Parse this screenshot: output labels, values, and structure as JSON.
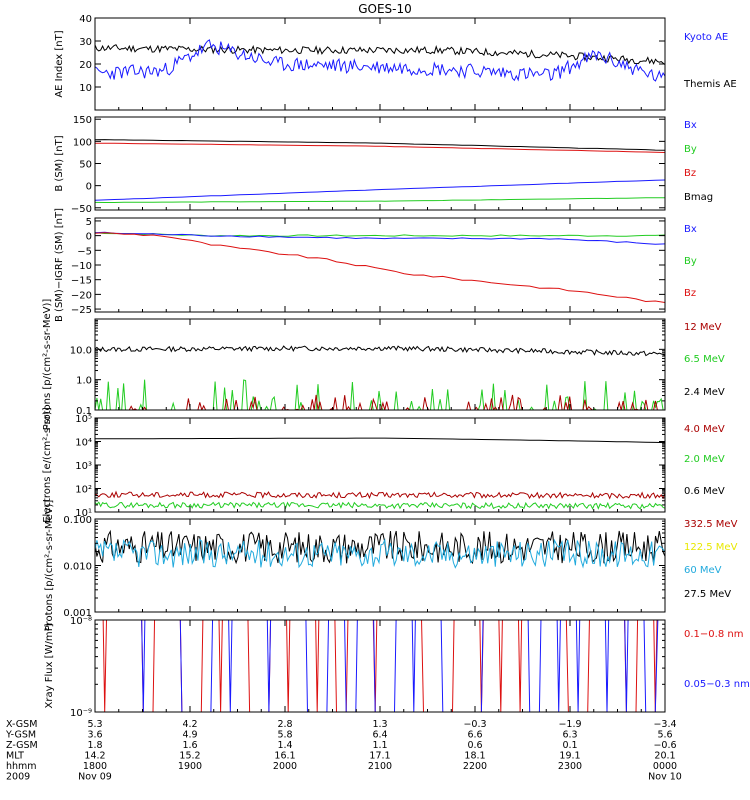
{
  "title": "GOES-10",
  "colors": {
    "black": "#000000",
    "blue": "#1a1aff",
    "green": "#22cc22",
    "red": "#dd1111",
    "darkred": "#aa0000",
    "yellow": "#e8e800",
    "cyan": "#22aadd"
  },
  "chart_data": [
    {
      "id": "ae",
      "type": "line",
      "ylabel": "AE Index [nT]",
      "yscale": "linear",
      "ylim": [
        0,
        40
      ],
      "yticks": [
        {
          "v": 10,
          "l": "10"
        },
        {
          "v": 20,
          "l": "20"
        },
        {
          "v": 30,
          "l": "30"
        },
        {
          "v": 40,
          "l": "40"
        }
      ],
      "legend": [
        {
          "name": "Kyoto AE",
          "color": "#1a1aff"
        },
        {
          "name": "Themis AE",
          "color": "#000000"
        }
      ],
      "series": [
        {
          "name": "Themis AE",
          "color": "#000000",
          "kind": "noise",
          "base": [
            [
              0,
              27
            ],
            [
              0.3,
              26
            ],
            [
              0.6,
              26
            ],
            [
              0.8,
              24
            ],
            [
              1,
              21
            ]
          ],
          "amp": 1.6,
          "seed": 11
        },
        {
          "name": "Kyoto AE",
          "color": "#1a1aff",
          "kind": "noise",
          "base": [
            [
              0,
              16
            ],
            [
              0.12,
              17
            ],
            [
              0.2,
              28
            ],
            [
              0.32,
              20
            ],
            [
              0.6,
              18
            ],
            [
              0.8,
              15
            ],
            [
              0.88,
              24
            ],
            [
              1,
              13
            ]
          ],
          "amp": 3.2,
          "seed": 23
        }
      ]
    },
    {
      "id": "bsm",
      "type": "line",
      "ylabel": "B (SM) [nT]",
      "yscale": "linear",
      "ylim": [
        -55,
        155
      ],
      "yticks": [
        {
          "v": -50,
          "l": "−50"
        },
        {
          "v": 0,
          "l": "0"
        },
        {
          "v": 50,
          "l": "50"
        },
        {
          "v": 100,
          "l": "100"
        },
        {
          "v": 150,
          "l": "150"
        }
      ],
      "legend": [
        {
          "name": "Bx",
          "color": "#1a1aff"
        },
        {
          "name": "By",
          "color": "#22cc22"
        },
        {
          "name": "Bz",
          "color": "#dd1111"
        },
        {
          "name": "Bmag",
          "color": "#000000"
        }
      ],
      "series": [
        {
          "name": "Bmag",
          "color": "#000000",
          "kind": "smooth",
          "base": [
            [
              0,
              104
            ],
            [
              0.5,
              96
            ],
            [
              1,
              80
            ]
          ],
          "amp": 0.3,
          "seed": 3
        },
        {
          "name": "Bz",
          "color": "#dd1111",
          "kind": "smooth",
          "base": [
            [
              0,
              96
            ],
            [
              0.5,
              89
            ],
            [
              1,
              75
            ]
          ],
          "amp": 0.3,
          "seed": 4
        },
        {
          "name": "Bx",
          "color": "#1a1aff",
          "kind": "smooth",
          "base": [
            [
              0,
              -33
            ],
            [
              0.5,
              -9
            ],
            [
              1,
              13
            ]
          ],
          "amp": 0.3,
          "seed": 5
        },
        {
          "name": "By",
          "color": "#22cc22",
          "kind": "smooth",
          "base": [
            [
              0,
              -38
            ],
            [
              0.5,
              -35
            ],
            [
              1,
              -27
            ]
          ],
          "amp": 0.3,
          "seed": 6
        }
      ]
    },
    {
      "id": "bigrf",
      "type": "line",
      "ylabel": "B (SM)−IGRF (SM) [nT]",
      "yscale": "linear",
      "ylim": [
        -26,
        6
      ],
      "yticks": [
        {
          "v": -25,
          "l": "−25"
        },
        {
          "v": -20,
          "l": "−20"
        },
        {
          "v": -15,
          "l": "−15"
        },
        {
          "v": -10,
          "l": "−10"
        },
        {
          "v": -5,
          "l": "−5"
        },
        {
          "v": 0,
          "l": "0"
        },
        {
          "v": 5,
          "l": "5"
        }
      ],
      "legend": [
        {
          "name": "Bx",
          "color": "#1a1aff"
        },
        {
          "name": "By",
          "color": "#22cc22"
        },
        {
          "name": "Bz",
          "color": "#dd1111"
        }
      ],
      "series": [
        {
          "name": "By",
          "color": "#22cc22",
          "kind": "smooth",
          "base": [
            [
              0,
              1
            ],
            [
              0.2,
              0
            ],
            [
              0.5,
              0
            ],
            [
              1,
              0
            ]
          ],
          "amp": 0.25,
          "seed": 7
        },
        {
          "name": "Bx",
          "color": "#1a1aff",
          "kind": "smooth",
          "base": [
            [
              0,
              1
            ],
            [
              0.2,
              0
            ],
            [
              0.5,
              -1
            ],
            [
              0.8,
              -1
            ],
            [
              1,
              -3
            ]
          ],
          "amp": 0.25,
          "seed": 8
        },
        {
          "name": "Bz",
          "color": "#dd1111",
          "kind": "smooth",
          "base": [
            [
              0,
              1
            ],
            [
              0.12,
              0
            ],
            [
              0.2,
              -3
            ],
            [
              0.4,
              -8
            ],
            [
              0.55,
              -13
            ],
            [
              0.7,
              -16
            ],
            [
              0.85,
              -19
            ],
            [
              1,
              -23
            ]
          ],
          "amp": 0.35,
          "seed": 9
        }
      ]
    },
    {
      "id": "prot1",
      "type": "line",
      "ylabel": "Protons [p/(cm²-s-sr-MeV)]",
      "yscale": "log",
      "ylim": [
        0.1,
        100
      ],
      "yticks": [
        {
          "v": 0.1,
          "l": "0.1"
        },
        {
          "v": 1,
          "l": "1.0"
        },
        {
          "v": 10,
          "l": "10.0"
        }
      ],
      "legend": [
        {
          "name": "12 MeV",
          "color": "#aa0000"
        },
        {
          "name": "6.5 MeV",
          "color": "#22cc22"
        },
        {
          "name": "2.4 MeV",
          "color": "#000000"
        }
      ],
      "series": [
        {
          "name": "2.4 MeV",
          "color": "#000000",
          "kind": "lognoise",
          "base": [
            [
              0,
              10
            ],
            [
              0.5,
              11
            ],
            [
              1,
              7
            ]
          ],
          "amp": 0.08,
          "seed": 13
        },
        {
          "name": "6.5 MeV",
          "color": "#22cc22",
          "kind": "spikes",
          "base": [
            [
              0,
              0.1
            ],
            [
              1,
              0.1
            ]
          ],
          "amp": 0.5,
          "seed": 17
        },
        {
          "name": "12 MeV",
          "color": "#aa0000",
          "kind": "spikes",
          "base": [
            [
              0,
              0.1
            ],
            [
              1,
              0.1
            ]
          ],
          "amp": 0.25,
          "seed": 19
        }
      ]
    },
    {
      "id": "elec",
      "type": "line",
      "ylabel": "Electrons [e/(cm²-s-sr)]",
      "yscale": "log",
      "ylim": [
        10,
        100000
      ],
      "yticks": [
        {
          "v": 10,
          "l": "10¹"
        },
        {
          "v": 100,
          "l": "10²"
        },
        {
          "v": 1000,
          "l": "10³"
        },
        {
          "v": 10000,
          "l": "10⁴"
        },
        {
          "v": 100000,
          "l": "10⁵"
        }
      ],
      "legend": [
        {
          "name": "4.0 MeV",
          "color": "#aa0000"
        },
        {
          "name": "2.0 MeV",
          "color": "#22cc22"
        },
        {
          "name": "0.6 MeV",
          "color": "#000000"
        }
      ],
      "series": [
        {
          "name": "0.6 MeV",
          "color": "#000000",
          "kind": "smooth",
          "base": [
            [
              0,
              13000
            ],
            [
              0.5,
              14000
            ],
            [
              1,
              9000
            ]
          ],
          "amp": 0.01,
          "seed": 21
        },
        {
          "name": "4.0 MeV",
          "color": "#aa0000",
          "kind": "lognoise",
          "base": [
            [
              0,
              55
            ],
            [
              1,
              50
            ]
          ],
          "amp": 0.12,
          "seed": 25
        },
        {
          "name": "2.0 MeV",
          "color": "#22cc22",
          "kind": "lognoise",
          "base": [
            [
              0,
              20
            ],
            [
              1,
              18
            ]
          ],
          "amp": 0.12,
          "seed": 29
        }
      ]
    },
    {
      "id": "prot2",
      "type": "line",
      "ylabel": "Protons [p/(cm²-s-sr-MeV)]",
      "yscale": "log",
      "ylim": [
        0.001,
        0.1
      ],
      "yticks": [
        {
          "v": 0.001,
          "l": "0.001"
        },
        {
          "v": 0.01,
          "l": "0.010"
        },
        {
          "v": 0.1,
          "l": "0.100"
        }
      ],
      "legend": [
        {
          "name": "332.5 MeV",
          "color": "#aa0000"
        },
        {
          "name": "122.5 MeV",
          "color": "#e8e800"
        },
        {
          "name": "60 MeV",
          "color": "#22aadd"
        },
        {
          "name": "27.5 MeV",
          "color": "#000000"
        }
      ],
      "series": [
        {
          "name": "27.5 MeV",
          "color": "#000000",
          "kind": "lognoise",
          "base": [
            [
              0,
              0.025
            ],
            [
              1,
              0.025
            ]
          ],
          "amp": 0.35,
          "seed": 31
        },
        {
          "name": "60 MeV",
          "color": "#22aadd",
          "kind": "lognoise",
          "base": [
            [
              0,
              0.018
            ],
            [
              1,
              0.018
            ]
          ],
          "amp": 0.3,
          "seed": 37
        }
      ]
    },
    {
      "id": "xray",
      "type": "line",
      "ylabel": "Xray Flux [W/m²]",
      "yscale": "log",
      "ylim": [
        1e-09,
        1e-08
      ],
      "yticks": [
        {
          "v": 1e-09,
          "l": "10⁻⁹"
        },
        {
          "v": 1e-08,
          "l": "10⁻⁸"
        }
      ],
      "legend": [
        {
          "name": "0.1−0.8 nm",
          "color": "#dd1111"
        },
        {
          "name": "0.05−0.3 nm",
          "color": "#1a1aff"
        }
      ],
      "series": [
        {
          "name": "0.1−0.8 nm",
          "color": "#dd1111",
          "kind": "smooth",
          "base": [
            [
              0,
              3.8e-09
            ],
            [
              1,
              3.8e-09
            ]
          ],
          "amp": 0.002,
          "seed": 41
        },
        {
          "name": "0.05−0.3 nm",
          "color": "#1a1aff",
          "kind": "smooth",
          "base": [
            [
              0,
              3.6e-09
            ],
            [
              1,
              3.6e-09
            ]
          ],
          "amp": 0.002,
          "seed": 43
        }
      ]
    }
  ],
  "x_axis": {
    "range": [
      "1800",
      "0000"
    ],
    "rows": [
      {
        "label": "X-GSM",
        "values": [
          "5.3",
          "4.2",
          "2.8",
          "1.3",
          "−0.3",
          "−1.9",
          "−3.4"
        ]
      },
      {
        "label": "Y-GSM",
        "values": [
          "3.6",
          "4.9",
          "5.8",
          "6.4",
          "6.6",
          "6.3",
          "5.6"
        ]
      },
      {
        "label": "Z-GSM",
        "values": [
          "1.8",
          "1.6",
          "1.4",
          "1.1",
          "0.6",
          "0.1",
          "−0.6"
        ]
      },
      {
        "label": "MLT",
        "values": [
          "14.2",
          "15.2",
          "16.1",
          "17.1",
          "18.1",
          "19.1",
          "20.1"
        ]
      },
      {
        "label": "hhmm",
        "values": [
          "1800",
          "1900",
          "2000",
          "2100",
          "2200",
          "2300",
          "0000"
        ]
      },
      {
        "label": "2009",
        "values": [
          "Nov 09",
          "",
          "",
          "",
          "",
          "",
          "Nov 10"
        ]
      }
    ]
  }
}
